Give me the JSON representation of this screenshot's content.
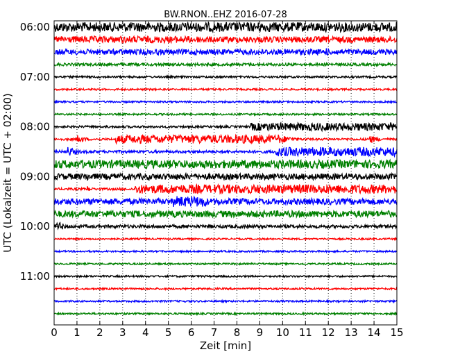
{
  "chart_data": {
    "type": "line",
    "title": "BW.RNON..EHZ 2016-07-28",
    "xlabel": "Zeit  [min]",
    "ylabel": "UTC (Lokalzeit = UTC + 02:00)",
    "xlim": [
      0,
      15
    ],
    "x_ticks": [
      "0",
      "1",
      "2",
      "3",
      "4",
      "5",
      "6",
      "7",
      "8",
      "9",
      "10",
      "11",
      "12",
      "13",
      "14",
      "15"
    ],
    "y_ticks": [
      "06:00",
      "07:00",
      "08:00",
      "09:00",
      "10:00",
      "11:00"
    ],
    "grid": "vertical dotted at each minute",
    "trace_colors": [
      "#000000",
      "#ff0000",
      "#0000ff",
      "#008000"
    ],
    "series": [
      {
        "start": "06:00",
        "amplitude": 0.85,
        "events": [
          {
            "t": 6.1,
            "a": 0.3,
            "d": 0.5
          }
        ]
      },
      {
        "start": "06:15",
        "amplitude": 0.55,
        "events": [
          {
            "t": 0.3,
            "a": 0.45,
            "d": 6.0
          },
          {
            "t": 6.1,
            "a": 0.55,
            "d": 0.3
          },
          {
            "t": 14.5,
            "a": 0.55,
            "d": 0.6
          }
        ]
      },
      {
        "start": "06:30",
        "amplitude": 0.5,
        "events": [
          {
            "t": 0.2,
            "a": 0.3,
            "d": 7.0
          },
          {
            "t": 11.9,
            "a": 0.8,
            "d": 0.2
          }
        ]
      },
      {
        "start": "06:45",
        "amplitude": 0.25,
        "events": []
      },
      {
        "start": "07:00",
        "amplitude": 0.18,
        "events": []
      },
      {
        "start": "07:15",
        "amplitude": 0.16,
        "events": [
          {
            "t": 2.6,
            "a": 0.35,
            "d": 0.1
          }
        ]
      },
      {
        "start": "07:30",
        "amplitude": 0.16,
        "events": []
      },
      {
        "start": "07:45",
        "amplitude": 0.16,
        "events": []
      },
      {
        "start": "08:00",
        "amplitude": 0.2,
        "events": [
          {
            "t": 8.6,
            "a": 0.65,
            "d": 6.4
          }
        ]
      },
      {
        "start": "08:15",
        "amplitude": 0.2,
        "events": [
          {
            "t": 1.0,
            "a": 0.8,
            "d": 0.5
          },
          {
            "t": 2.7,
            "a": 0.7,
            "d": 7.0
          },
          {
            "t": 9.8,
            "a": 0.85,
            "d": 0.9
          },
          {
            "t": 13.8,
            "a": 0.75,
            "d": 0.6
          }
        ]
      },
      {
        "start": "08:30",
        "amplitude": 0.25,
        "events": [
          {
            "t": 0.6,
            "a": 0.9,
            "d": 0.6
          },
          {
            "t": 9.7,
            "a": 0.75,
            "d": 5.3
          }
        ]
      },
      {
        "start": "08:45",
        "amplitude": 0.75,
        "events": []
      },
      {
        "start": "09:00",
        "amplitude": 0.55,
        "events": [
          {
            "t": 1.4,
            "a": 0.95,
            "d": 0.3
          }
        ]
      },
      {
        "start": "09:15",
        "amplitude": 0.2,
        "events": [
          {
            "t": 1.4,
            "a": 0.7,
            "d": 0.3
          },
          {
            "t": 3.55,
            "a": 0.75,
            "d": 11.45
          }
        ]
      },
      {
        "start": "09:30",
        "amplitude": 0.55,
        "events": [
          {
            "t": 5.2,
            "a": 0.8,
            "d": 1.5
          },
          {
            "t": 7.2,
            "a": 0.7,
            "d": 0.3
          }
        ]
      },
      {
        "start": "09:45",
        "amplitude": 0.6,
        "events": []
      },
      {
        "start": "10:00",
        "amplitude": 0.3,
        "events": [
          {
            "t": 0.1,
            "a": 1.0,
            "d": 0.5
          }
        ]
      },
      {
        "start": "10:15",
        "amplitude": 0.15,
        "events": []
      },
      {
        "start": "10:30",
        "amplitude": 0.15,
        "events": [
          {
            "t": 12.2,
            "a": 0.35,
            "d": 0.1
          }
        ]
      },
      {
        "start": "10:45",
        "amplitude": 0.15,
        "events": []
      },
      {
        "start": "11:00",
        "amplitude": 0.16,
        "events": []
      },
      {
        "start": "11:15",
        "amplitude": 0.16,
        "events": [
          {
            "t": 1.3,
            "a": 0.3,
            "d": 0.1
          }
        ]
      },
      {
        "start": "11:30",
        "amplitude": 0.16,
        "events": []
      },
      {
        "start": "11:45",
        "amplitude": 0.16,
        "events": []
      }
    ]
  }
}
